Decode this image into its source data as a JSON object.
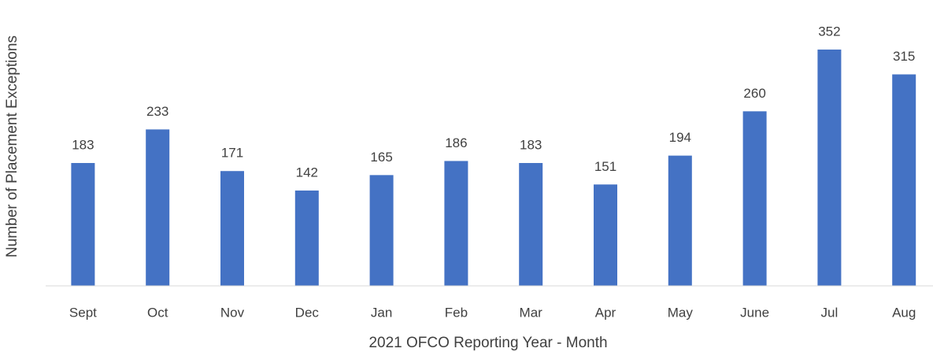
{
  "chart_data": {
    "type": "bar",
    "x_label": "2021 OFCO Reporting Year - Month",
    "y_label": "Number of Placement Exceptions",
    "categories": [
      "Sept",
      "Oct",
      "Nov",
      "Dec",
      "Jan",
      "Feb",
      "Mar",
      "Apr",
      "May",
      "June",
      "Jul",
      "Aug"
    ],
    "values": [
      183,
      233,
      171,
      142,
      165,
      186,
      183,
      151,
      194,
      260,
      352,
      315
    ],
    "color": "#4472c4",
    "ylim": [
      0,
      400
    ]
  }
}
